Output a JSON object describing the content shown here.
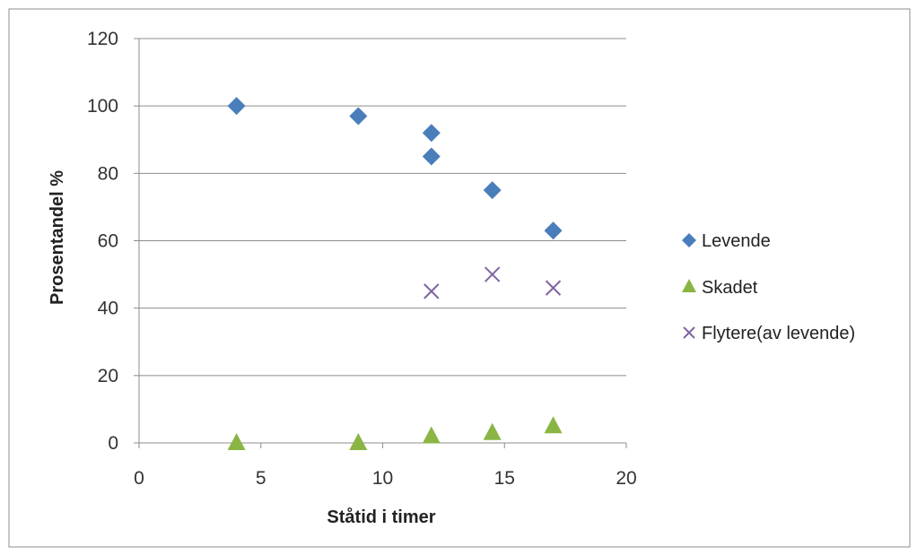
{
  "chart_data": {
    "type": "scatter",
    "title": "",
    "xlabel": "Ståtid  i timer",
    "ylabel": "Prosentandel %",
    "xlim": [
      0,
      20
    ],
    "ylim": [
      0,
      120
    ],
    "x_ticks": [
      0,
      5,
      10,
      15,
      20
    ],
    "x_tick_labels": [
      "0",
      "5",
      "10",
      "15",
      "20"
    ],
    "y_ticks": [
      0,
      20,
      40,
      60,
      80,
      100,
      120
    ],
    "y_tick_labels": [
      "0",
      "20",
      "40",
      "60",
      "80",
      "100",
      "120"
    ],
    "grid": "horizontal",
    "legend_position": "right",
    "series": [
      {
        "name": "Levende",
        "marker": "diamond",
        "color": "#4a7ebb",
        "points": [
          [
            4,
            100
          ],
          [
            9,
            97
          ],
          [
            12,
            92
          ],
          [
            12,
            85
          ],
          [
            14.5,
            75
          ],
          [
            17,
            63
          ]
        ]
      },
      {
        "name": "Skadet",
        "marker": "triangle",
        "color": "#8ab545",
        "points": [
          [
            4,
            0
          ],
          [
            9,
            0
          ],
          [
            12,
            2
          ],
          [
            14.5,
            3
          ],
          [
            17,
            5
          ]
        ]
      },
      {
        "name": "Flytere(av levende)",
        "marker": "x",
        "color": "#8064a2",
        "points": [
          [
            12,
            45
          ],
          [
            14.5,
            50
          ],
          [
            17,
            46
          ]
        ]
      }
    ]
  }
}
